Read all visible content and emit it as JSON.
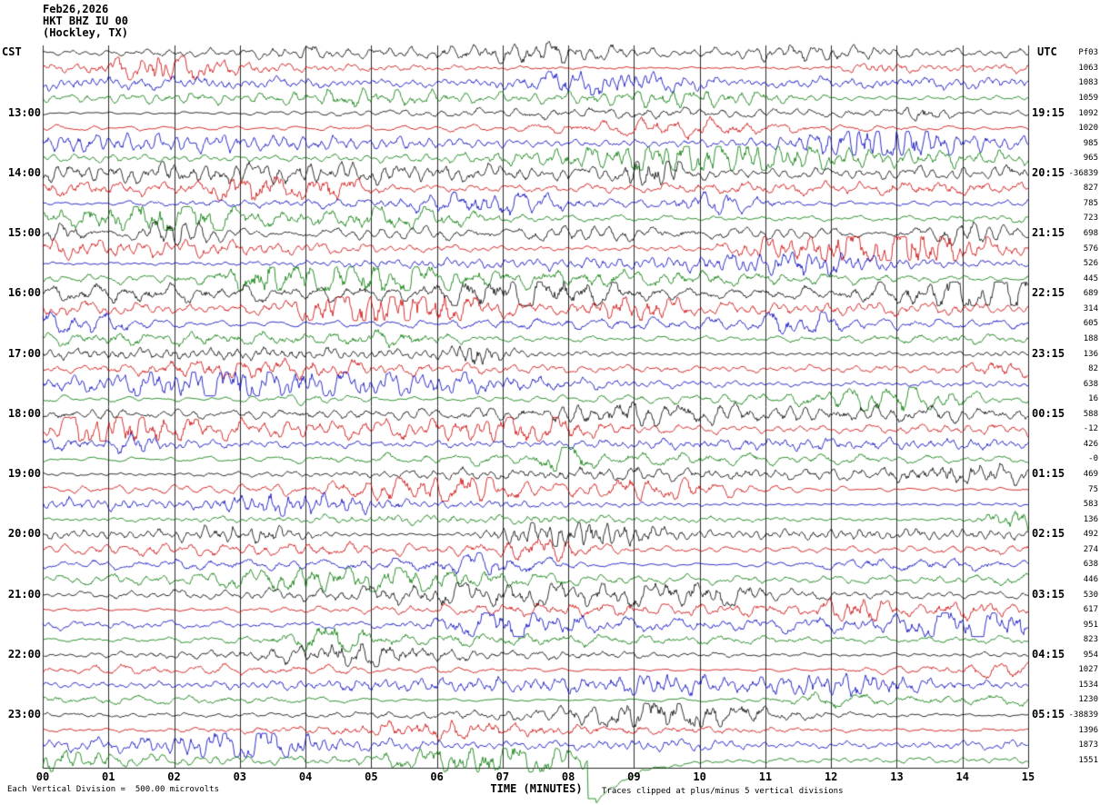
{
  "header": {
    "date": "Feb26,2026",
    "station": "HKT BHZ IU 00",
    "location": "(Hockley, TX)"
  },
  "axes": {
    "left_tz": "CST",
    "right_tz": "UTC",
    "x_title": "TIME (MINUTES)",
    "x_ticks": [
      "00",
      "01",
      "02",
      "03",
      "04",
      "05",
      "06",
      "07",
      "08",
      "09",
      "10",
      "11",
      "12",
      "13",
      "14",
      "15"
    ]
  },
  "footer": {
    "scale_note": "Each Vertical Division =  500.00 microvolts",
    "clip_note": "Traces clipped at plus/minus 5 vertical divisions"
  },
  "chart_data": {
    "type": "line",
    "subtype": "seismogram-helicorder",
    "title": "HKT BHZ IU 00 (Hockley, TX) Feb26,2026",
    "x_range_minutes": [
      0,
      15
    ],
    "rows": 48,
    "minutes_per_row": 15,
    "grid": "vertical lines every 1 minute",
    "trace_colors": [
      "#000000",
      "#cc0000",
      "#0000bb",
      "#007700"
    ],
    "left_time_labels": [
      {
        "row": 4,
        "label": "13:00"
      },
      {
        "row": 8,
        "label": "14:00"
      },
      {
        "row": 12,
        "label": "15:00"
      },
      {
        "row": 16,
        "label": "16:00"
      },
      {
        "row": 20,
        "label": "17:00"
      },
      {
        "row": 24,
        "label": "18:00"
      },
      {
        "row": 28,
        "label": "19:00"
      },
      {
        "row": 32,
        "label": "20:00"
      },
      {
        "row": 36,
        "label": "21:00"
      },
      {
        "row": 40,
        "label": "22:00"
      },
      {
        "row": 44,
        "label": "23:00"
      }
    ],
    "right_time_labels": [
      {
        "row": 4,
        "label": "19:15"
      },
      {
        "row": 8,
        "label": "20:15"
      },
      {
        "row": 12,
        "label": "21:15"
      },
      {
        "row": 16,
        "label": "22:15"
      },
      {
        "row": 20,
        "label": "23:15"
      },
      {
        "row": 24,
        "label": "00:15"
      },
      {
        "row": 28,
        "label": "01:15"
      },
      {
        "row": 32,
        "label": "02:15"
      },
      {
        "row": 36,
        "label": "03:15"
      },
      {
        "row": 40,
        "label": "04:15"
      },
      {
        "row": 44,
        "label": "05:15"
      }
    ],
    "row_peak_values": [
      "Pf03",
      "1063",
      "1083",
      "1059",
      "1092",
      "1020",
      "985",
      "965",
      "-36839",
      "827",
      "785",
      "723",
      "698",
      "576",
      "526",
      "445",
      "689",
      "314",
      "605",
      "188",
      "136",
      "82",
      "638",
      "16",
      "588",
      "-12",
      "426",
      "-0",
      "469",
      "75",
      "583",
      "136",
      "492",
      "274",
      "638",
      "446",
      "530",
      "617",
      "951",
      "823",
      "954",
      "1027",
      "1534",
      "1230",
      "-38839",
      "1396",
      "1873",
      "1551"
    ],
    "waveform_note": "continuous ambient seismic noise traces, clipped at plus/minus 5 vertical divisions",
    "event": {
      "row": 47,
      "type": "offset-recovery",
      "start_minute": 8.3,
      "recovery_end_minute": 10.3,
      "description": "last (green) trace drops off-scale below the plot and ramps back up to its baseline"
    }
  }
}
